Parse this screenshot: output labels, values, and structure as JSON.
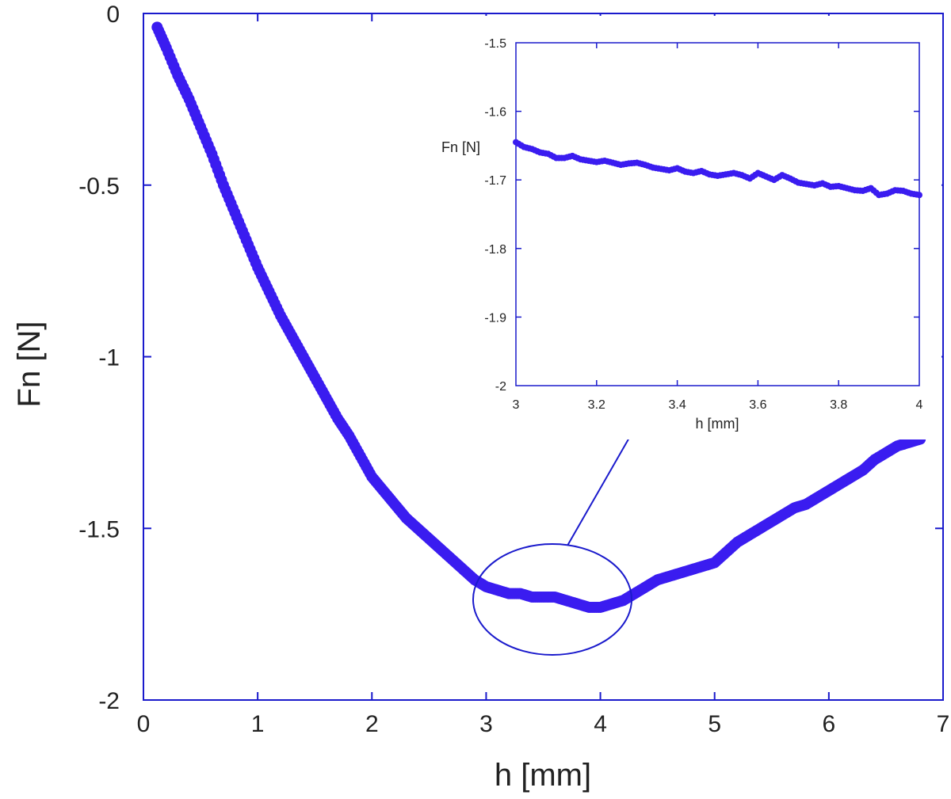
{
  "colors": {
    "axis": "#1a1acc",
    "series": "#3a1cf0"
  },
  "chart_data": [
    {
      "type": "scatter",
      "xlabel": "h [mm]",
      "ylabel": "Fn [N]",
      "xlim": [
        0,
        7
      ],
      "ylim": [
        -2,
        0
      ],
      "xticks": [
        0,
        1,
        2,
        3,
        4,
        5,
        6,
        7
      ],
      "yticks": [
        0,
        -0.5,
        -1,
        -1.5,
        -2
      ],
      "grid": false,
      "series": [
        {
          "x": [
            0.12,
            0.2,
            0.3,
            0.4,
            0.5,
            0.6,
            0.7,
            0.8,
            0.9,
            1.0,
            1.1,
            1.2,
            1.3,
            1.4,
            1.5,
            1.6,
            1.7,
            1.8,
            1.9,
            2.0,
            2.1,
            2.2,
            2.3,
            2.4,
            2.5,
            2.6,
            2.7,
            2.8,
            2.9,
            3.0,
            3.1,
            3.2,
            3.3,
            3.4,
            3.5,
            3.6,
            3.7,
            3.8,
            3.9,
            4.0,
            4.1,
            4.2,
            4.3,
            4.4,
            4.5,
            4.6,
            4.7,
            4.8,
            4.9,
            5.0,
            5.1,
            5.2,
            5.3,
            5.4,
            5.5,
            5.6,
            5.7,
            5.8,
            5.9,
            6.0,
            6.1,
            6.2,
            6.3,
            6.4,
            6.5,
            6.6,
            6.7,
            6.8
          ],
          "y": [
            -0.04,
            -0.1,
            -0.18,
            -0.25,
            -0.33,
            -0.41,
            -0.5,
            -0.58,
            -0.66,
            -0.74,
            -0.81,
            -0.88,
            -0.94,
            -1.0,
            -1.06,
            -1.12,
            -1.18,
            -1.23,
            -1.29,
            -1.35,
            -1.39,
            -1.43,
            -1.47,
            -1.5,
            -1.53,
            -1.56,
            -1.59,
            -1.62,
            -1.65,
            -1.67,
            -1.68,
            -1.69,
            -1.69,
            -1.7,
            -1.7,
            -1.7,
            -1.71,
            -1.72,
            -1.73,
            -1.73,
            -1.72,
            -1.71,
            -1.69,
            -1.67,
            -1.65,
            -1.64,
            -1.63,
            -1.62,
            -1.61,
            -1.6,
            -1.57,
            -1.54,
            -1.52,
            -1.5,
            -1.48,
            -1.46,
            -1.44,
            -1.43,
            -1.41,
            -1.39,
            -1.37,
            -1.35,
            -1.33,
            -1.3,
            -1.28,
            -1.26,
            -1.25,
            -1.24
          ]
        }
      ]
    },
    {
      "type": "scatter",
      "xlabel": "h [mm]",
      "ylabel": "Fn [N]",
      "xlim": [
        3,
        4
      ],
      "ylim": [
        -2,
        -1.5
      ],
      "xticks": [
        3,
        3.2,
        3.4,
        3.6,
        3.8,
        4
      ],
      "yticks": [
        -1.5,
        -1.6,
        -1.7,
        -1.8,
        -1.9,
        -2
      ],
      "grid": false,
      "series": [
        {
          "x": [
            3.0,
            3.02,
            3.04,
            3.06,
            3.08,
            3.1,
            3.12,
            3.14,
            3.16,
            3.18,
            3.2,
            3.22,
            3.24,
            3.26,
            3.28,
            3.3,
            3.32,
            3.34,
            3.36,
            3.38,
            3.4,
            3.42,
            3.44,
            3.46,
            3.48,
            3.5,
            3.52,
            3.54,
            3.56,
            3.58,
            3.6,
            3.62,
            3.64,
            3.66,
            3.68,
            3.7,
            3.72,
            3.74,
            3.76,
            3.78,
            3.8,
            3.82,
            3.84,
            3.86,
            3.88,
            3.9,
            3.92,
            3.94,
            3.96,
            3.98,
            4.0
          ],
          "y": [
            -1.645,
            -1.652,
            -1.655,
            -1.66,
            -1.662,
            -1.668,
            -1.668,
            -1.665,
            -1.67,
            -1.672,
            -1.674,
            -1.672,
            -1.675,
            -1.678,
            -1.676,
            -1.675,
            -1.678,
            -1.682,
            -1.684,
            -1.686,
            -1.683,
            -1.688,
            -1.69,
            -1.687,
            -1.692,
            -1.694,
            -1.692,
            -1.69,
            -1.693,
            -1.698,
            -1.69,
            -1.695,
            -1.7,
            -1.693,
            -1.698,
            -1.704,
            -1.706,
            -1.708,
            -1.705,
            -1.71,
            -1.709,
            -1.712,
            -1.715,
            -1.716,
            -1.712,
            -1.722,
            -1.72,
            -1.715,
            -1.716,
            -1.72,
            -1.722
          ]
        }
      ]
    }
  ]
}
